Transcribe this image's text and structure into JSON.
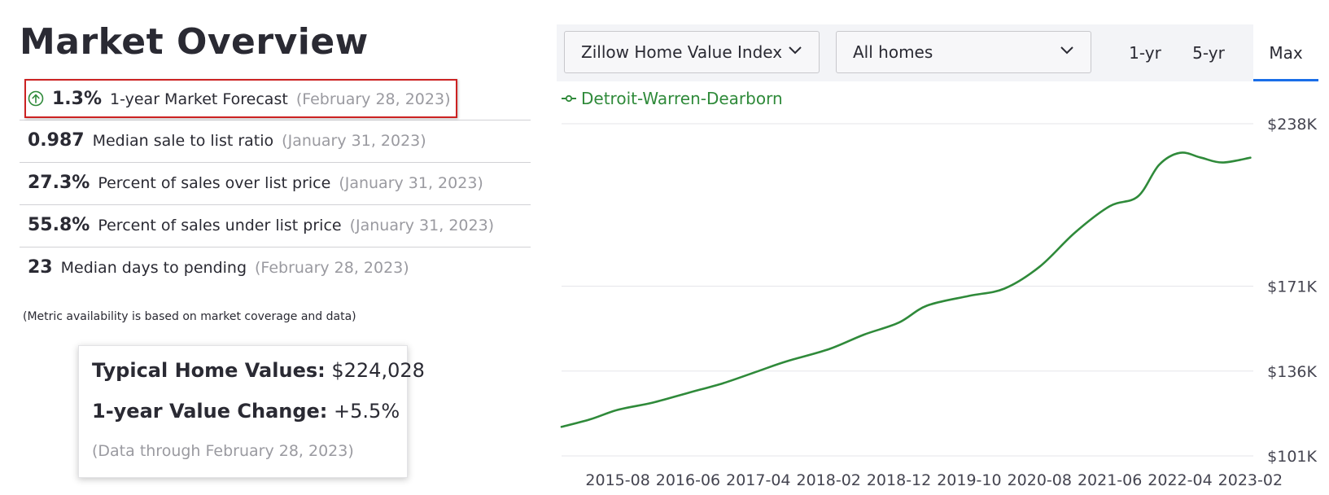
{
  "page": {
    "title": "Market Overview",
    "note": "(Metric availability is based on market coverage and data)"
  },
  "metrics": [
    {
      "value": "1.3%",
      "label": "1-year Market Forecast",
      "date": "(February 28, 2023)",
      "icon": "arrow-up-circle-icon"
    },
    {
      "value": "0.987",
      "label": "Median sale to list ratio",
      "date": "(January 31, 2023)"
    },
    {
      "value": "27.3%",
      "label": "Percent of sales over list price",
      "date": "(January 31, 2023)"
    },
    {
      "value": "55.8%",
      "label": "Percent of sales under list price",
      "date": "(January 31, 2023)"
    },
    {
      "value": "23",
      "label": "Median days to pending",
      "date": "(February 28, 2023)"
    }
  ],
  "summary_card": {
    "home_values_label": "Typical Home Values:",
    "home_values": "$224,028",
    "value_change_label": "1-year Value Change:",
    "value_change": "+5.5%",
    "data_through": "(Data through February 28, 2023)"
  },
  "controls": {
    "index_select": "Zillow Home Value Index",
    "homes_select": "All homes",
    "tabs": [
      "1-yr",
      "5-yr",
      "Max"
    ],
    "active_tab": "Max"
  },
  "colors": {
    "series": "#2f8a3a",
    "accent": "#1a6ee8",
    "highlight": "#cc2222"
  },
  "chart_data": {
    "type": "line",
    "x_ticks": [
      "2015-08",
      "2016-06",
      "2017-04",
      "2018-02",
      "2018-12",
      "2019-10",
      "2020-08",
      "2021-06",
      "2022-04",
      "2023-02"
    ],
    "y_ticks": [
      "$238K",
      "$171K",
      "$136K",
      "$101K"
    ],
    "y_tick_values": [
      238,
      171,
      136,
      101
    ],
    "ylim": [
      101,
      238
    ],
    "y_unit": "$K",
    "grid": true,
    "series": [
      {
        "name": "Detroit-Warren-Dearborn",
        "x": [
          "2014-12",
          "2015-04",
          "2015-08",
          "2016-01",
          "2016-06",
          "2016-11",
          "2017-04",
          "2017-08",
          "2018-02",
          "2018-07",
          "2018-12",
          "2019-04",
          "2019-10",
          "2020-03",
          "2020-08",
          "2021-01",
          "2021-06",
          "2021-10",
          "2022-01",
          "2022-04",
          "2022-07",
          "2022-10",
          "2023-02"
        ],
        "y": [
          113,
          116,
          120,
          123,
          127,
          131,
          136,
          140,
          145,
          151,
          156,
          163,
          167,
          170,
          179,
          193,
          204,
          208,
          221,
          226,
          224,
          222,
          224
        ]
      }
    ]
  }
}
